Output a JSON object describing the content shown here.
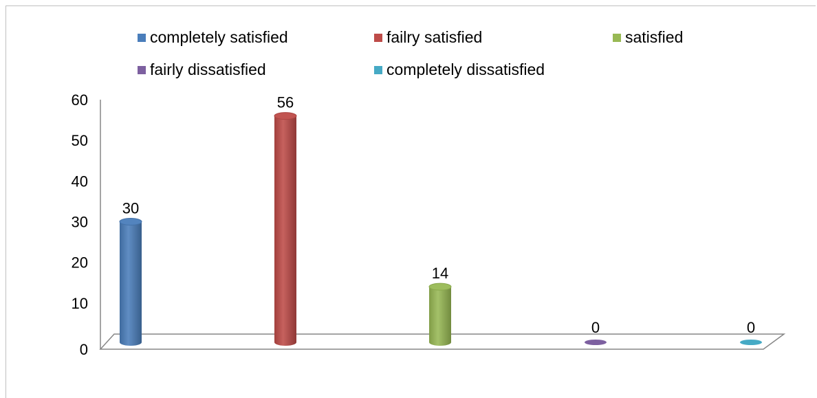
{
  "chart_data": {
    "type": "bar",
    "style": "3d-cylinder",
    "categories": [
      "completely satisfied",
      "failry satisfied",
      "satisfied",
      "fairly dissatisfied",
      "completely dissatisfied"
    ],
    "values": [
      30,
      56,
      14,
      0,
      0
    ],
    "colors": [
      "#4a7ebb",
      "#be4b48",
      "#98b954",
      "#7d60a0",
      "#46aac5"
    ],
    "ylim": [
      0,
      60
    ],
    "yticks": [
      "0",
      "10",
      "20",
      "30",
      "40",
      "50",
      "60"
    ],
    "show_data_labels": true,
    "legend": {
      "position": "top",
      "entries": [
        "completely satisfied",
        "failry satisfied",
        "satisfied",
        "fairly dissatisfied",
        "completely dissatisfied"
      ]
    },
    "grid": false
  }
}
